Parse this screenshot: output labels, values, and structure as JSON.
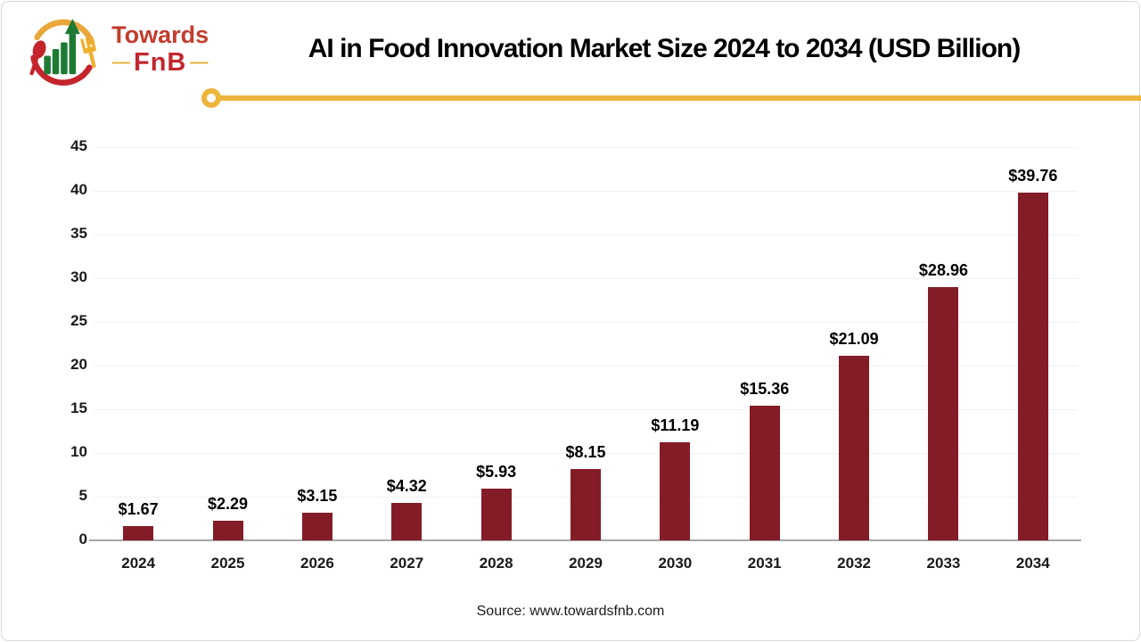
{
  "header": {
    "title": "AI in Food Innovation Market Size 2024 to 2034 (USD Billion)"
  },
  "logo": {
    "text_top": "Towards",
    "text_bottom": "FnB",
    "dash": "—",
    "icon": "towards-fnb-logo-icon"
  },
  "footer": {
    "source": "Source: www.towardsfnb.com"
  },
  "colors": {
    "bar": "#841C28",
    "accent_yellow": "#EEB53C",
    "logo_red": "#C4242B",
    "logo_green": "#1E7A33",
    "grid": "#F0F0F0",
    "axis_line": "#A6A6A6"
  },
  "chart_data": {
    "type": "bar",
    "title": "AI in Food Innovation Market Size 2024 to 2034 (USD Billion)",
    "unit": "USD Billion",
    "categories": [
      "2024",
      "2025",
      "2026",
      "2027",
      "2028",
      "2029",
      "2030",
      "2031",
      "2032",
      "2033",
      "2034"
    ],
    "values": [
      1.67,
      2.29,
      3.15,
      4.32,
      5.93,
      8.15,
      11.19,
      15.36,
      21.09,
      28.96,
      39.76
    ],
    "data_labels": [
      "$1.67",
      "$2.29",
      "$3.15",
      "$4.32",
      "$5.93",
      "$8.15",
      "$11.19",
      "$15.36",
      "$21.09",
      "$28.96",
      "$39.76"
    ],
    "xlabel": "",
    "ylabel": "",
    "ylim": [
      0,
      45
    ],
    "ytick_step": 5,
    "grid": true,
    "legend": "none"
  }
}
